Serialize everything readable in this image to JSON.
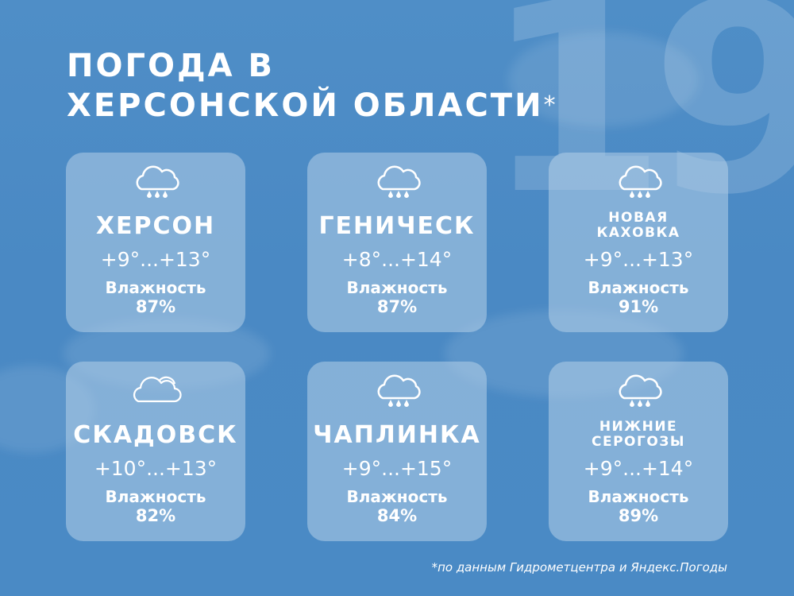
{
  "background_number": "19",
  "title": {
    "line1": "ПОГОДА В",
    "line2": "ХЕРСОНСКОЙ ОБЛАСТИ",
    "asterisk": "*"
  },
  "humidity_label": "Влажность",
  "colors": {
    "background": "#4a8ac5",
    "card": "#b4d0e8",
    "text": "#ffffff"
  },
  "cards": [
    {
      "city": "ХЕРСОН",
      "icon": "rain-cloud-icon",
      "temperature": "+9°...+13°",
      "humidity": "87%"
    },
    {
      "city": "ГЕНИЧЕСК",
      "icon": "rain-cloud-icon",
      "temperature": "+8°...+14°",
      "humidity": "87%"
    },
    {
      "city": "НОВАЯ КАХОВКА",
      "icon": "rain-cloud-icon",
      "temperature": "+9°...+13°",
      "humidity": "91%"
    },
    {
      "city": "СКАДОВСК",
      "icon": "cloud-icon",
      "temperature": "+10°...+13°",
      "humidity": "82%"
    },
    {
      "city": "ЧАПЛИНКА",
      "icon": "rain-cloud-icon",
      "temperature": "+9°...+15°",
      "humidity": "84%"
    },
    {
      "city": "НИЖНИЕ СЕРОГОЗЫ",
      "icon": "rain-cloud-icon",
      "temperature": "+9°...+14°",
      "humidity": "89%"
    }
  ],
  "footnote": "*по данным Гидрометцентра и Яндекс.Погоды"
}
